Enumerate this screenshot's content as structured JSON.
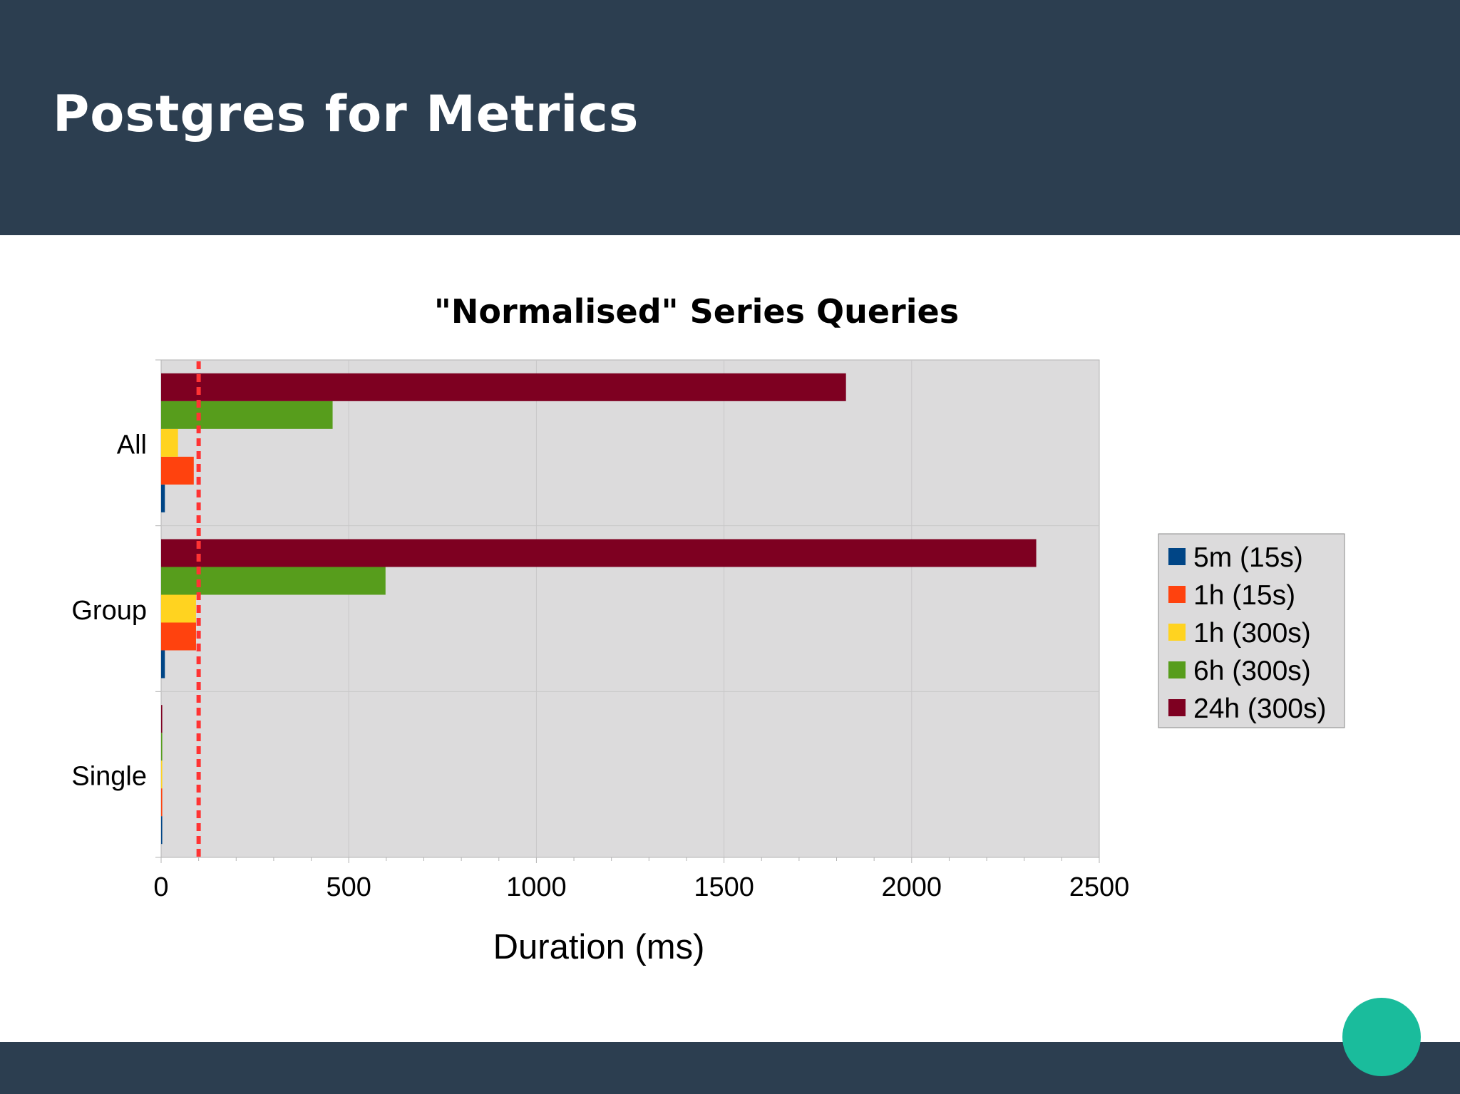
{
  "slide": {
    "title": "Postgres for Metrics"
  },
  "colors": {
    "header_bg": "#2c3e50",
    "footer_bg": "#2c3e50",
    "badge": "#1abc9c",
    "plot_bg": "#dcdbdc",
    "threshold_line": "#ff3333"
  },
  "chart_data": {
    "type": "bar",
    "orientation": "horizontal",
    "title": "\"Normalised\" Series Queries",
    "xlabel": "Duration (ms)",
    "ylabel": "",
    "xlim": [
      0,
      2500
    ],
    "xticks": [
      0,
      500,
      1000,
      1500,
      2000,
      2500
    ],
    "categories": [
      "All",
      "Group",
      "Single"
    ],
    "series": [
      {
        "name": "5m (15s)",
        "color": "#004586",
        "values": [
          10,
          10,
          3
        ]
      },
      {
        "name": "1h (15s)",
        "color": "#ff420e",
        "values": [
          87,
          93,
          3
        ]
      },
      {
        "name": "1h (300s)",
        "color": "#ffd320",
        "values": [
          45,
          93,
          3
        ]
      },
      {
        "name": "6h (300s)",
        "color": "#579d1c",
        "values": [
          457,
          598,
          3
        ]
      },
      {
        "name": "24h (300s)",
        "color": "#7e0021",
        "values": [
          1825,
          2332,
          3
        ]
      }
    ],
    "threshold": 100,
    "grid": true,
    "legend": "right"
  }
}
